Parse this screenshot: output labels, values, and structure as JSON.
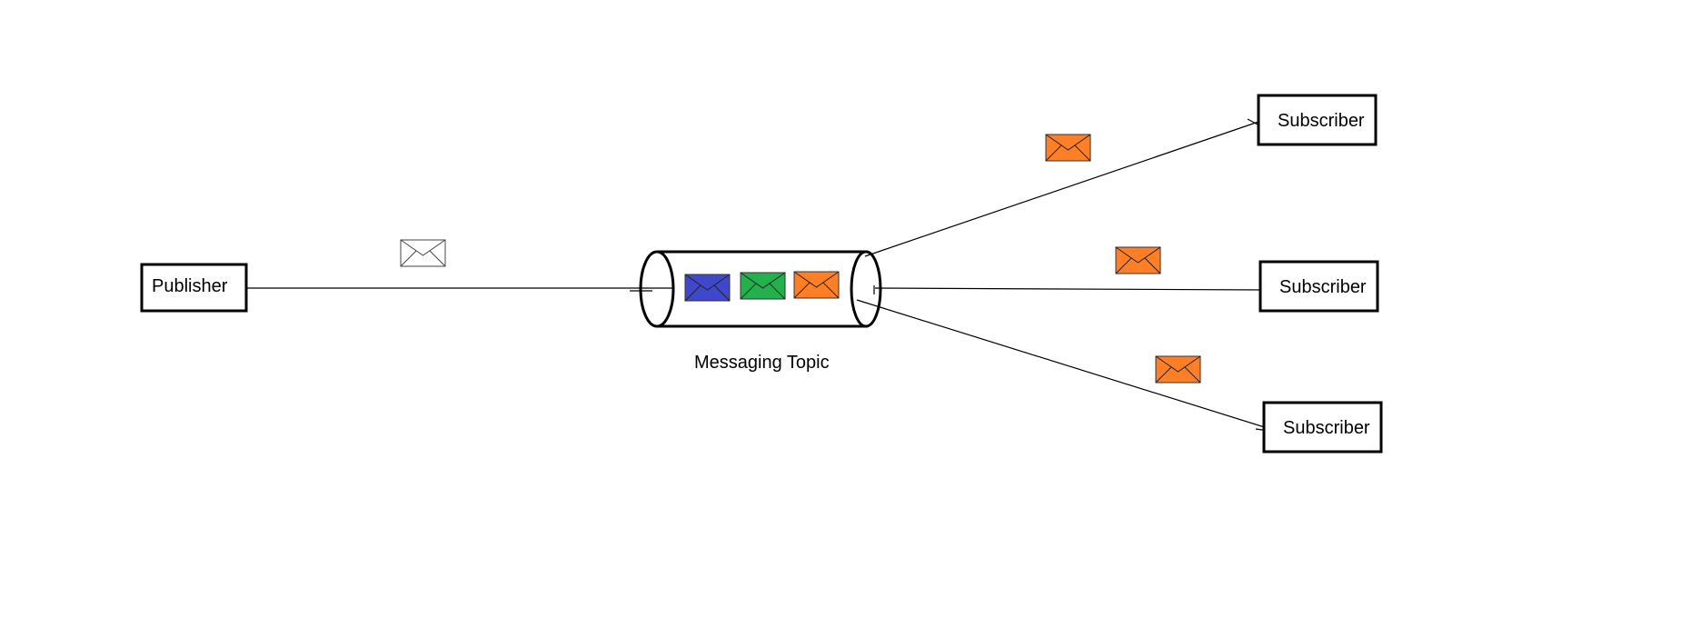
{
  "diagram": {
    "publisher": {
      "label": "Publisher"
    },
    "topic": {
      "label": "Messaging Topic"
    },
    "subscribers": [
      {
        "label": "Subscriber"
      },
      {
        "label": "Subscriber"
      },
      {
        "label": "Subscriber"
      }
    ],
    "messages": {
      "incoming": {
        "icon": "envelope-icon",
        "color": "#FFFFFF"
      },
      "queued": [
        {
          "icon": "envelope-icon",
          "color": "#3F48CC"
        },
        {
          "icon": "envelope-icon",
          "color": "#22B14C"
        },
        {
          "icon": "envelope-icon",
          "color": "#FF7F27"
        }
      ],
      "outgoing": [
        {
          "icon": "envelope-icon",
          "color": "#FF7F27"
        },
        {
          "icon": "envelope-icon",
          "color": "#FF7F27"
        },
        {
          "icon": "envelope-icon",
          "color": "#FF7F27"
        }
      ]
    }
  }
}
